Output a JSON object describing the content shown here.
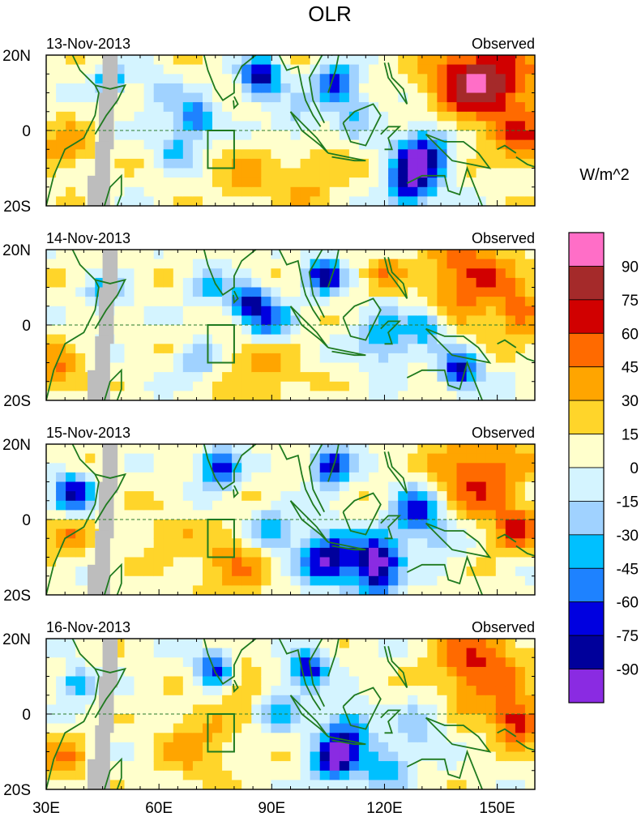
{
  "chart_data": {
    "type": "heatmap",
    "title": "OLR",
    "units_label": "W/m^2",
    "x_ticks": [
      "30E",
      "60E",
      "90E",
      "120E",
      "150E"
    ],
    "x_tick_values": [
      30,
      60,
      90,
      120,
      150
    ],
    "y_ticks": [
      "20N",
      "0",
      "20S"
    ],
    "y_tick_values": [
      20,
      0,
      -20
    ],
    "xlim": [
      30,
      160
    ],
    "ylim": [
      -20,
      20
    ],
    "box_region": {
      "lon": [
        73,
        80
      ],
      "lat": [
        -10,
        0
      ]
    },
    "panels": [
      {
        "date": "13-Nov-2013",
        "label": "Observed"
      },
      {
        "date": "14-Nov-2013",
        "label": "Observed"
      },
      {
        "date": "15-Nov-2013",
        "label": "Observed"
      },
      {
        "date": "16-Nov-2013",
        "label": "Observed"
      }
    ],
    "colorbar": {
      "levels": [
        "90",
        "75",
        "60",
        "45",
        "30",
        "15",
        "0",
        "-15",
        "-30",
        "-45",
        "-60",
        "-75",
        "-90"
      ],
      "colors": [
        "#ff6ec7",
        "#a52a2a",
        "#d10000",
        "#ff6a00",
        "#ffa500",
        "#ffd52a",
        "#ffffcc",
        "#d4f4ff",
        "#a0d2ff",
        "#00c0ff",
        "#1e82ff",
        "#0000e0",
        "#00009b",
        "#8a2be2"
      ]
    }
  }
}
